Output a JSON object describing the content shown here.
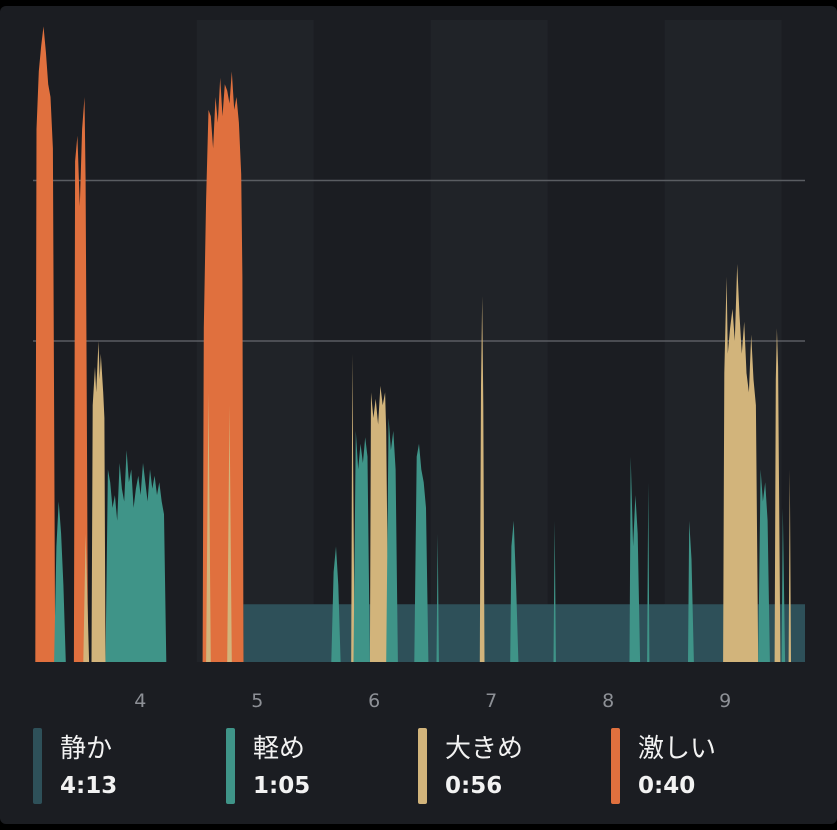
{
  "chart_data": {
    "type": "area",
    "title": "",
    "xlabel": "",
    "ylabel": "",
    "x_ticks": [
      "4",
      "5",
      "6",
      "7",
      "8",
      "9"
    ],
    "xlim": [
      3.1,
      9.7
    ],
    "ylim": [
      0,
      100
    ],
    "reference_lines": [
      50,
      75
    ],
    "grid": "reference-lines",
    "legend_position": "bottom",
    "colors": {
      "quiet": "#2e5059",
      "light": "#3f9488",
      "moderate": "#d2b47b",
      "intense": "#e0703e",
      "background": "#1b1d22",
      "band": "#202328"
    },
    "legend": [
      {
        "key": "quiet",
        "label": "静か",
        "value": "4:13",
        "color": "#2e5059"
      },
      {
        "key": "light",
        "label": "軽め",
        "value": "1:05",
        "color": "#3f9488"
      },
      {
        "key": "moderate",
        "label": "大きめ",
        "value": "0:56",
        "color": "#d2b47b"
      },
      {
        "key": "intense",
        "label": "激しい",
        "value": "0:40",
        "color": "#e0703e"
      }
    ],
    "series": [
      {
        "key": "quiet",
        "points": [
          [
            4.9,
            9
          ],
          [
            9.7,
            9
          ]
        ]
      },
      {
        "key": "intense",
        "points": [
          [
            3.12,
            0
          ],
          [
            3.13,
            83
          ],
          [
            3.15,
            92
          ],
          [
            3.17,
            96
          ],
          [
            3.19,
            99
          ],
          [
            3.21,
            95
          ],
          [
            3.23,
            90
          ],
          [
            3.25,
            88
          ],
          [
            3.27,
            80
          ],
          [
            3.28,
            40
          ],
          [
            3.29,
            0
          ],
          [
            3.45,
            0
          ],
          [
            3.46,
            78
          ],
          [
            3.48,
            82
          ],
          [
            3.5,
            71
          ],
          [
            3.52,
            83
          ],
          [
            3.54,
            88
          ],
          [
            3.55,
            75
          ],
          [
            3.56,
            40
          ],
          [
            3.57,
            0
          ],
          [
            4.55,
            0
          ],
          [
            4.56,
            52
          ],
          [
            4.58,
            72
          ],
          [
            4.6,
            86
          ],
          [
            4.62,
            85
          ],
          [
            4.64,
            80
          ],
          [
            4.66,
            88
          ],
          [
            4.68,
            84
          ],
          [
            4.7,
            91
          ],
          [
            4.72,
            85
          ],
          [
            4.74,
            90
          ],
          [
            4.76,
            89
          ],
          [
            4.78,
            87
          ],
          [
            4.8,
            92
          ],
          [
            4.82,
            86
          ],
          [
            4.84,
            88
          ],
          [
            4.86,
            84
          ],
          [
            4.88,
            76
          ],
          [
            4.89,
            60
          ],
          [
            4.9,
            0
          ]
        ]
      },
      {
        "key": "moderate",
        "points": [
          [
            3.6,
            0
          ],
          [
            3.61,
            40
          ],
          [
            3.63,
            46
          ],
          [
            3.64,
            42
          ],
          [
            3.66,
            50
          ],
          [
            3.67,
            44
          ],
          [
            3.68,
            48
          ],
          [
            3.7,
            42
          ],
          [
            3.71,
            38
          ],
          [
            3.72,
            0
          ],
          [
            3.53,
            0
          ],
          [
            3.55,
            20
          ],
          [
            3.58,
            0
          ],
          [
            4.58,
            0
          ],
          [
            4.6,
            42
          ],
          [
            4.62,
            0
          ],
          [
            4.76,
            0
          ],
          [
            4.78,
            40
          ],
          [
            4.8,
            0
          ],
          [
            5.82,
            0
          ],
          [
            5.83,
            48
          ],
          [
            5.85,
            0
          ],
          [
            5.98,
            0
          ],
          [
            5.99,
            42
          ],
          [
            6.01,
            38
          ],
          [
            6.03,
            41
          ],
          [
            6.05,
            37
          ],
          [
            6.07,
            43
          ],
          [
            6.09,
            40
          ],
          [
            6.11,
            42
          ],
          [
            6.12,
            36
          ],
          [
            6.14,
            0
          ],
          [
            6.92,
            0
          ],
          [
            6.93,
            43
          ],
          [
            6.94,
            57
          ],
          [
            6.95,
            40
          ],
          [
            6.96,
            0
          ],
          [
            9.0,
            0
          ],
          [
            9.01,
            45
          ],
          [
            9.03,
            60
          ],
          [
            9.04,
            48
          ],
          [
            9.06,
            52
          ],
          [
            9.08,
            55
          ],
          [
            9.1,
            50
          ],
          [
            9.12,
            62
          ],
          [
            9.14,
            54
          ],
          [
            9.16,
            48
          ],
          [
            9.18,
            53
          ],
          [
            9.2,
            45
          ],
          [
            9.22,
            42
          ],
          [
            9.24,
            51
          ],
          [
            9.26,
            44
          ],
          [
            9.28,
            40
          ],
          [
            9.3,
            0
          ],
          [
            9.44,
            0
          ],
          [
            9.45,
            44
          ],
          [
            9.46,
            52
          ],
          [
            9.47,
            46
          ],
          [
            9.49,
            0
          ],
          [
            9.56,
            0
          ],
          [
            9.57,
            30
          ],
          [
            9.58,
            0
          ]
        ]
      },
      {
        "key": "light",
        "points": [
          [
            3.28,
            0
          ],
          [
            3.3,
            18
          ],
          [
            3.32,
            25
          ],
          [
            3.34,
            20
          ],
          [
            3.36,
            12
          ],
          [
            3.38,
            0
          ],
          [
            3.72,
            0
          ],
          [
            3.74,
            30
          ],
          [
            3.76,
            28
          ],
          [
            3.78,
            24
          ],
          [
            3.8,
            26
          ],
          [
            3.82,
            22
          ],
          [
            3.84,
            31
          ],
          [
            3.86,
            27
          ],
          [
            3.88,
            25
          ],
          [
            3.9,
            33
          ],
          [
            3.92,
            28
          ],
          [
            3.94,
            30
          ],
          [
            3.96,
            24
          ],
          [
            3.98,
            27
          ],
          [
            4.0,
            29
          ],
          [
            4.02,
            26
          ],
          [
            4.04,
            31
          ],
          [
            4.06,
            28
          ],
          [
            4.08,
            25
          ],
          [
            4.1,
            30
          ],
          [
            4.12,
            27
          ],
          [
            4.14,
            29
          ],
          [
            4.16,
            26
          ],
          [
            4.18,
            28
          ],
          [
            4.2,
            25
          ],
          [
            4.22,
            23
          ],
          [
            4.24,
            0
          ],
          [
            5.65,
            0
          ],
          [
            5.67,
            14
          ],
          [
            5.69,
            18
          ],
          [
            5.71,
            12
          ],
          [
            5.73,
            0
          ],
          [
            5.84,
            0
          ],
          [
            5.86,
            36
          ],
          [
            5.88,
            30
          ],
          [
            5.9,
            34
          ],
          [
            5.92,
            31
          ],
          [
            5.94,
            35
          ],
          [
            5.96,
            32
          ],
          [
            5.98,
            0
          ],
          [
            6.12,
            0
          ],
          [
            6.14,
            38
          ],
          [
            6.16,
            33
          ],
          [
            6.18,
            36
          ],
          [
            6.2,
            30
          ],
          [
            6.22,
            0
          ],
          [
            6.36,
            0
          ],
          [
            6.38,
            32
          ],
          [
            6.4,
            34
          ],
          [
            6.42,
            30
          ],
          [
            6.44,
            28
          ],
          [
            6.46,
            24
          ],
          [
            6.48,
            0
          ],
          [
            6.55,
            0
          ],
          [
            6.56,
            20
          ],
          [
            6.57,
            0
          ],
          [
            7.18,
            0
          ],
          [
            7.19,
            18
          ],
          [
            7.21,
            22
          ],
          [
            7.23,
            12
          ],
          [
            7.25,
            0
          ],
          [
            7.55,
            0
          ],
          [
            7.56,
            22
          ],
          [
            7.57,
            0
          ],
          [
            8.2,
            0
          ],
          [
            8.21,
            32
          ],
          [
            8.23,
            18
          ],
          [
            8.25,
            26
          ],
          [
            8.27,
            20
          ],
          [
            8.29,
            0
          ],
          [
            8.35,
            0
          ],
          [
            8.36,
            28
          ],
          [
            8.37,
            0
          ],
          [
            8.7,
            0
          ],
          [
            8.71,
            22
          ],
          [
            8.73,
            16
          ],
          [
            8.75,
            0
          ],
          [
            9.3,
            0
          ],
          [
            9.32,
            30
          ],
          [
            9.34,
            25
          ],
          [
            9.36,
            28
          ],
          [
            9.38,
            22
          ],
          [
            9.4,
            0
          ],
          [
            9.5,
            0
          ],
          [
            9.51,
            24
          ],
          [
            9.53,
            0
          ]
        ]
      }
    ]
  }
}
